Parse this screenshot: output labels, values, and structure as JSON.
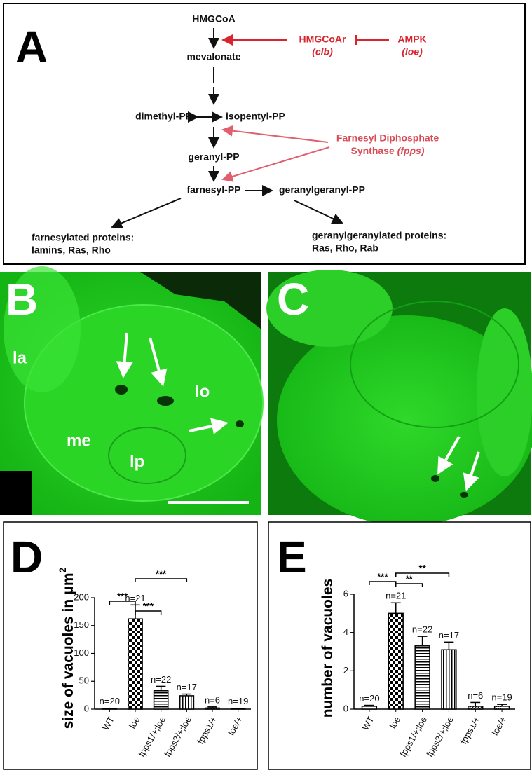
{
  "panel_a": {
    "letter": "A",
    "nodes": [
      "HMGCoA",
      "mevalonate",
      "dimethyl-PP",
      "isopentyl-PP",
      "geranyl-PP",
      "farnesyl-PP",
      "geranylgeranyl-PP"
    ],
    "products": [
      {
        "lines": [
          "farnesylated proteins:",
          "lamins, Ras, Rho"
        ]
      },
      {
        "lines": [
          "geranylgeranylated proteins:",
          "Ras, Rho, Rab"
        ]
      }
    ],
    "enzymes": {
      "hmgcoar": "HMGCoAr",
      "clb": "(clb)",
      "ampk": "AMPK",
      "loe": "(loe)",
      "fpps_line1": "Farnesyl Diphosphate",
      "fpps_line2": "Synthase",
      "fpps_gene": "(fpps)"
    }
  },
  "panel_b": {
    "letter": "B",
    "labels": [
      "la",
      "me",
      "lo",
      "lp"
    ]
  },
  "panel_c": {
    "letter": "C"
  },
  "chart_data": [
    {
      "type": "bar",
      "panel": "D",
      "y_label": "size of vacuoles in μm",
      "y_label_sup": "2",
      "categories": [
        "WT",
        "loe",
        "fpps1/+;loe",
        "fpps2/+;loe",
        "fpps1/+",
        "loe/+"
      ],
      "values": [
        1,
        162,
        33,
        24,
        2,
        1
      ],
      "errors": [
        0.5,
        25,
        8,
        3,
        2,
        0.5
      ],
      "n_labels": [
        "n=20",
        "n=21",
        "n=22",
        "n=17",
        "n=6",
        "n=19"
      ],
      "ylim": [
        0,
        200
      ],
      "yticks": [
        0,
        50,
        100,
        150,
        200
      ],
      "significance": [
        "***",
        "***",
        "***"
      ]
    },
    {
      "type": "bar",
      "panel": "E",
      "y_label": "number of vacuoles",
      "categories": [
        "WT",
        "loe",
        "fpps1/+;loe",
        "fpps2/+;loe",
        "fpps1/+",
        "loe/+"
      ],
      "values": [
        0.15,
        5.0,
        3.3,
        3.1,
        0.15,
        0.15
      ],
      "errors": [
        0.05,
        0.55,
        0.5,
        0.4,
        0.2,
        0.1
      ],
      "n_labels": [
        "n=20",
        "n=21",
        "n=22",
        "n=17",
        "n=6",
        "n=19"
      ],
      "ylim": [
        0,
        6
      ],
      "yticks": [
        0,
        2,
        4,
        6
      ],
      "significance": [
        "***",
        "**",
        "**"
      ]
    }
  ]
}
